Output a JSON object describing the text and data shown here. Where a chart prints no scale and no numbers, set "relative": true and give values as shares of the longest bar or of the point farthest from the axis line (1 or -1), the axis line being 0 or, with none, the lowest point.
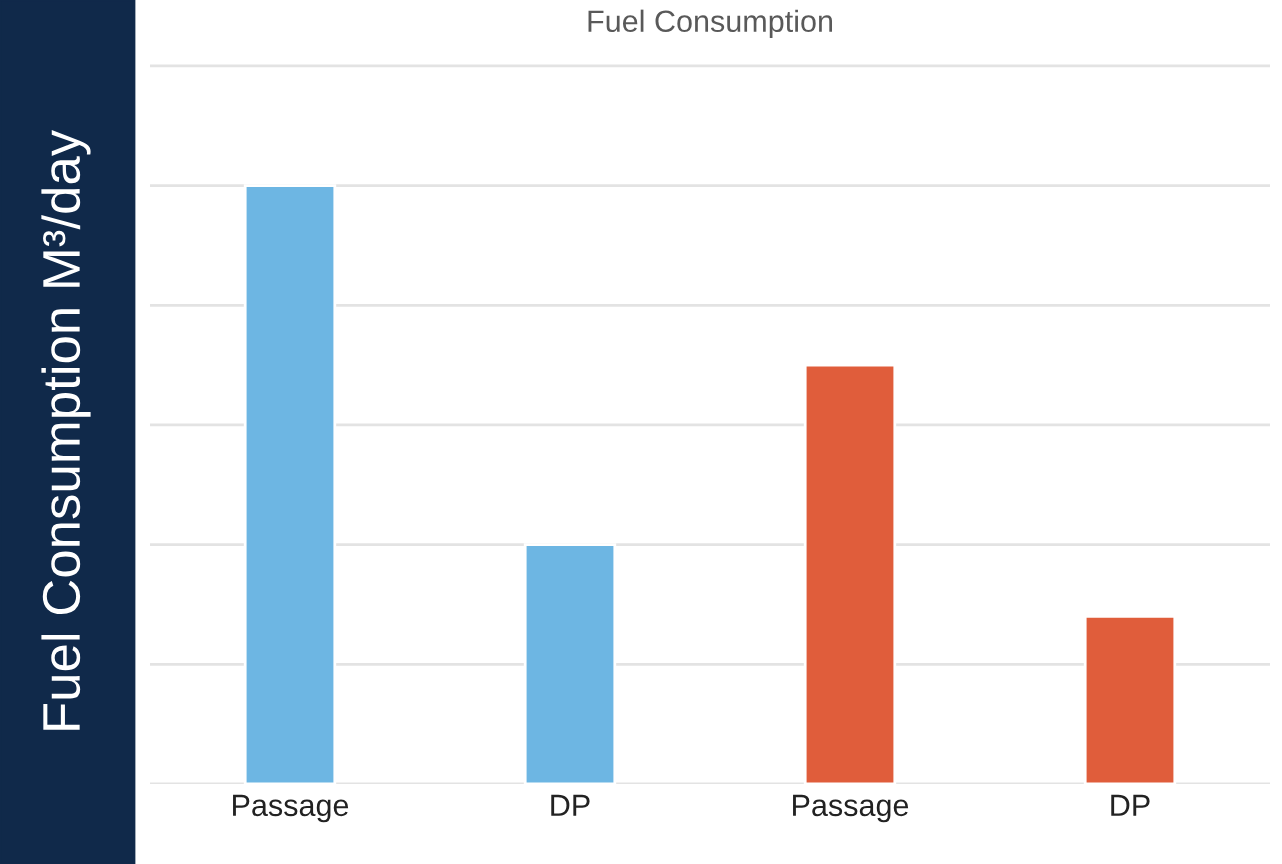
{
  "chart_data": {
    "type": "bar",
    "title": "Fuel Consumption",
    "ylabel": "Fuel Consumption M³/day",
    "categories": [
      "Passage",
      "DP",
      "Passage",
      "DP"
    ],
    "values": [
      1,
      0.4,
      0.7,
      0.28
    ],
    "colors": [
      "#6db6e3",
      "#6db6e3",
      "#e05d3b",
      "#e05d3b"
    ],
    "relative": true,
    "grid": "y",
    "legend": false
  }
}
